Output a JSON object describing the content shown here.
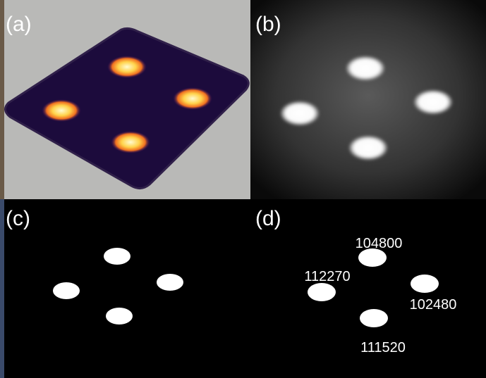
{
  "panels": [
    {
      "label": "(a)"
    },
    {
      "label": "(b)"
    },
    {
      "label": "(c)"
    },
    {
      "label": "(d)",
      "annotations": [
        "104800",
        "112270",
        "102480",
        "111520"
      ]
    }
  ]
}
